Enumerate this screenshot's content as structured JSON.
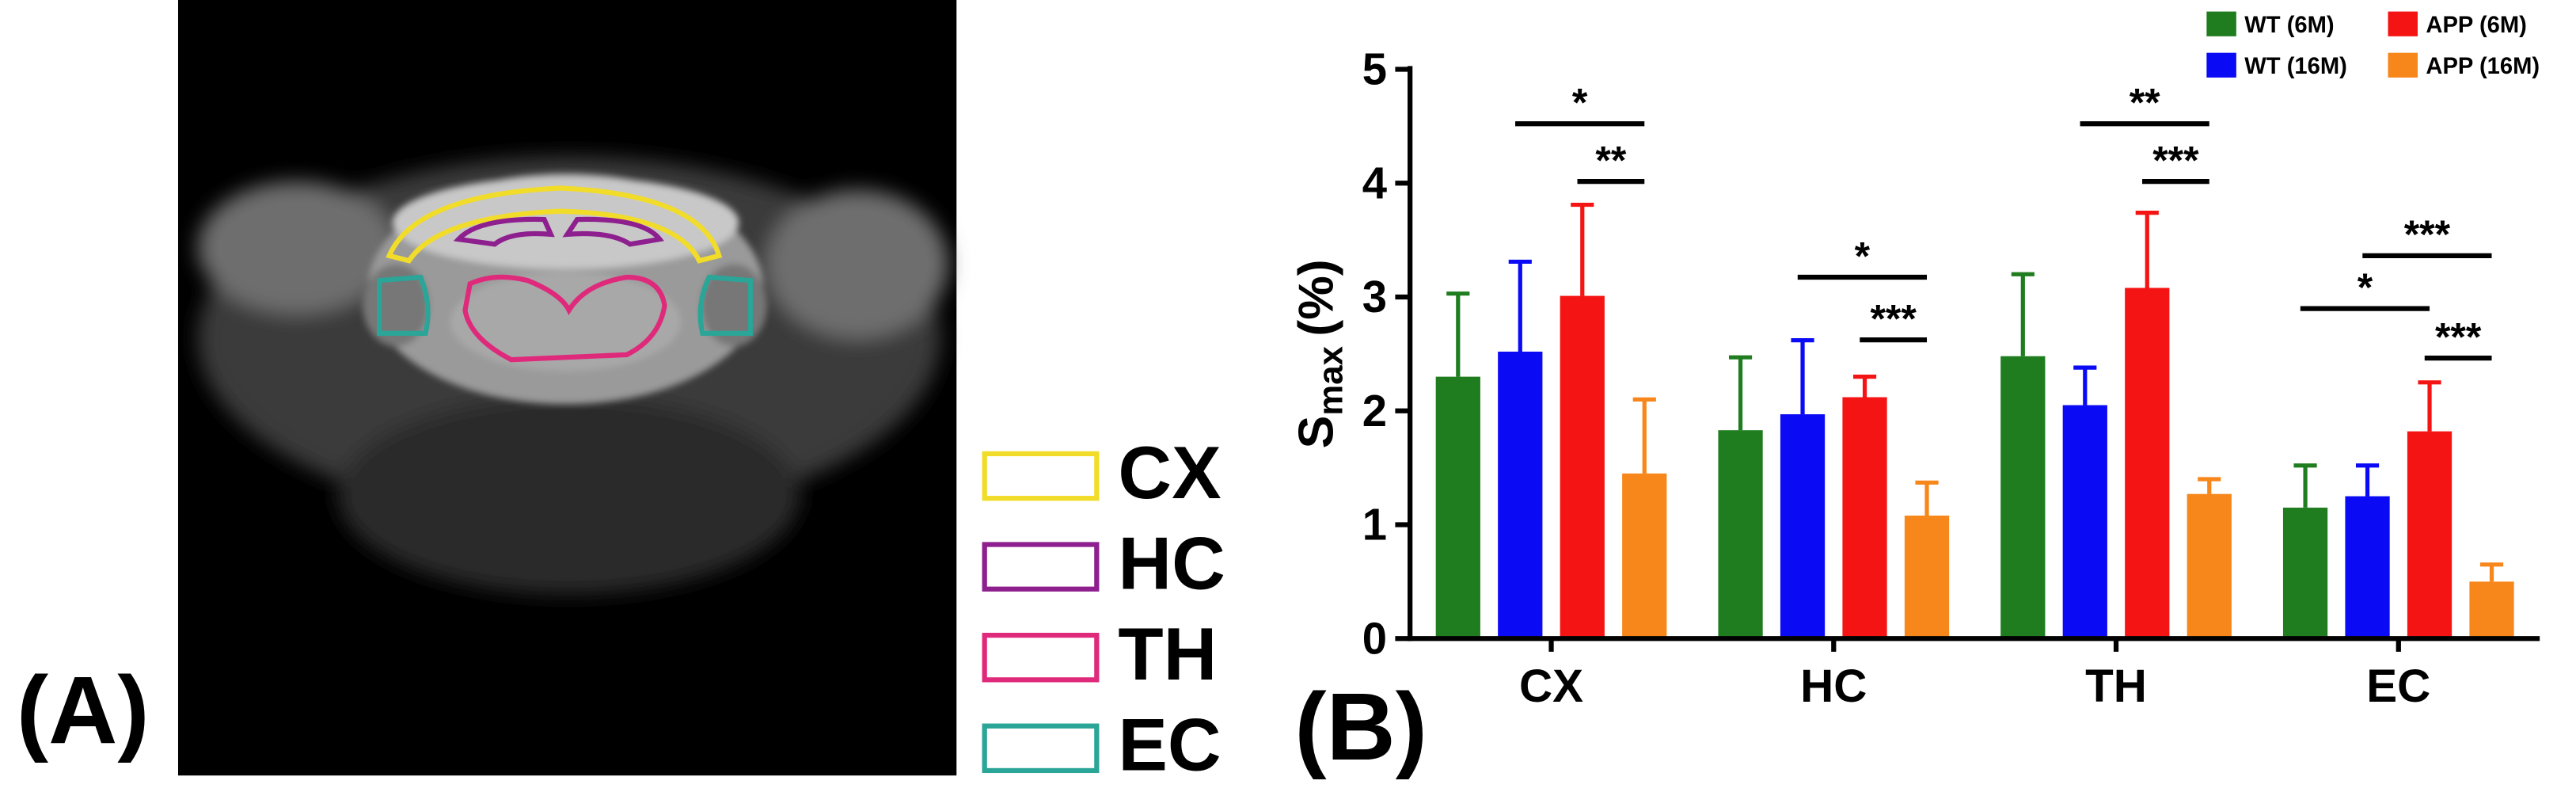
{
  "panel_a": {
    "label": "(A)",
    "regions": [
      {
        "name": "CX",
        "color": "#f2dc2a"
      },
      {
        "name": "HC",
        "color": "#8e1f8e"
      },
      {
        "name": "TH",
        "color": "#df2a7c"
      },
      {
        "name": "EC",
        "color": "#2aa597"
      }
    ]
  },
  "panel_b_label": "(B)",
  "chart_data": {
    "type": "bar",
    "ylabel": "S",
    "ylabel_sub": "max",
    "ylabel_unit": "(%)",
    "categories": [
      "CX",
      "HC",
      "TH",
      "EC"
    ],
    "series": [
      {
        "name": "WT (6M)",
        "color": "#1f7d1f",
        "values": [
          2.3,
          1.83,
          2.48,
          1.15
        ],
        "errors": [
          0.73,
          0.64,
          0.72,
          0.37
        ]
      },
      {
        "name": "WT (16M)",
        "color": "#0a0af5",
        "values": [
          2.52,
          1.97,
          2.05,
          1.25
        ],
        "errors": [
          0.79,
          0.65,
          0.33,
          0.27
        ]
      },
      {
        "name": "APP (6M)",
        "color": "#f51414",
        "values": [
          3.01,
          2.12,
          3.08,
          1.82
        ],
        "errors": [
          0.8,
          0.18,
          0.66,
          0.43
        ]
      },
      {
        "name": "APP (16M)",
        "color": "#f7861b",
        "values": [
          1.45,
          1.08,
          1.27,
          0.5
        ],
        "errors": [
          0.65,
          0.29,
          0.13,
          0.15
        ]
      }
    ],
    "ylim": [
      0,
      5
    ],
    "yticks": [
      0,
      1,
      2,
      3,
      4,
      5
    ],
    "grid": false,
    "legend": "top-right",
    "annotations": [
      "*",
      "**",
      "*",
      "***",
      "**",
      "***",
      "***",
      "*",
      "***"
    ]
  }
}
